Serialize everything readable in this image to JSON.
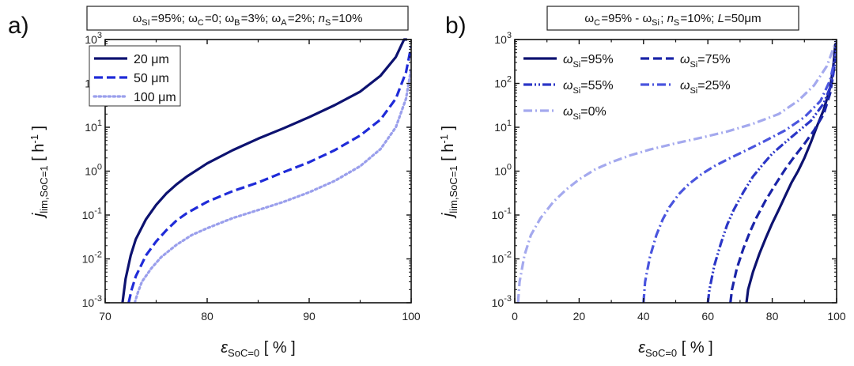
{
  "chart_data": [
    {
      "panel": "a)",
      "type": "line",
      "annotation": {
        "parts": [
          {
            "t": "ω",
            "s": "SI"
          },
          {
            "t": "=95%; ω",
            "s": "C"
          },
          {
            "t": "=0;  ω",
            "s": "B"
          },
          {
            "t": "=3%; ω",
            "s": "A"
          },
          {
            "t": "=2%; "
          },
          {
            "t": "n",
            "i": true,
            "s": "S"
          },
          {
            "t": "=10%"
          }
        ]
      },
      "xlabel": {
        "sym": "ε",
        "sub": "SoC=0",
        "unit": " [ % ]"
      },
      "ylabel": {
        "sym": "j",
        "sub": "lim,SoC=1",
        "unit": " [ h",
        "sup": "-1",
        "end": " ]"
      },
      "xlim": [
        70,
        100
      ],
      "ylim": [
        0.001,
        1000
      ],
      "yscale": "log",
      "xticks": [
        70,
        80,
        90,
        100
      ],
      "yticks": [
        {
          "v": 0.001,
          "m": "10",
          "e": "-3"
        },
        {
          "v": 0.01,
          "m": "10",
          "e": "-2"
        },
        {
          "v": 0.1,
          "m": "10",
          "e": "-1"
        },
        {
          "v": 1,
          "m": "10",
          "e": "0"
        },
        {
          "v": 10,
          "m": "10",
          "e": "1"
        },
        {
          "v": 100,
          "m": "10",
          "e": "2"
        },
        {
          "v": 1000,
          "m": "10",
          "e": "3"
        }
      ],
      "legend_position": "top-left",
      "legend": [
        {
          "label": "20 μm",
          "series": 0
        },
        {
          "label": "50 μm",
          "series": 1
        },
        {
          "label": "100 μm",
          "series": 2
        }
      ],
      "series": [
        {
          "name": "20 μm",
          "color": "#0d1270",
          "dash": "solid",
          "x": [
            71.7,
            72.0,
            72.5,
            73.0,
            74.0,
            75.0,
            76.0,
            77.0,
            78.0,
            80.0,
            82.5,
            85.0,
            87.5,
            90.0,
            92.5,
            95.0,
            97.0,
            98.5,
            99.3,
            99.6
          ],
          "y": [
            0.001,
            0.0035,
            0.012,
            0.028,
            0.08,
            0.17,
            0.31,
            0.5,
            0.75,
            1.5,
            3.0,
            5.5,
            9.5,
            17,
            32,
            65,
            150,
            400,
            1000,
            1000
          ]
        },
        {
          "name": "50 μm",
          "color": "#1f2bd8",
          "dash": "dash",
          "x": [
            72.3,
            72.6,
            73.0,
            74.0,
            75.0,
            76.0,
            77.0,
            78.0,
            80.0,
            82.5,
            85.0,
            87.5,
            90.0,
            92.5,
            95.0,
            97.0,
            98.5,
            99.5,
            100.0
          ],
          "y": [
            0.001,
            0.002,
            0.004,
            0.012,
            0.025,
            0.045,
            0.075,
            0.11,
            0.2,
            0.35,
            0.55,
            0.95,
            1.6,
            3.0,
            6.5,
            15,
            45,
            180,
            700
          ]
        },
        {
          "name": "100 μm",
          "color": "#9a9fec",
          "dash": "dot",
          "x": [
            72.9,
            73.2,
            73.6,
            74.5,
            75.5,
            77.0,
            78.5,
            80.0,
            82.5,
            85.0,
            87.5,
            90.0,
            92.5,
            95.0,
            97.0,
            98.5,
            99.5,
            100.0
          ],
          "y": [
            0.001,
            0.0017,
            0.003,
            0.006,
            0.011,
            0.021,
            0.035,
            0.05,
            0.085,
            0.13,
            0.2,
            0.33,
            0.6,
            1.3,
            3.2,
            10,
            45,
            220
          ]
        }
      ]
    },
    {
      "panel": "b)",
      "type": "line",
      "annotation": {
        "parts": [
          {
            "t": "ω",
            "s": "C"
          },
          {
            "t": "=95% - ω",
            "s": "Si"
          },
          {
            "t": "; "
          },
          {
            "t": "n",
            "i": true,
            "s": "S"
          },
          {
            "t": "=10%; "
          },
          {
            "t": "L",
            "i": true
          },
          {
            "t": "=50μm"
          }
        ]
      },
      "xlabel": {
        "sym": "ε",
        "sub": "SoC=0",
        "unit": " [ % ]"
      },
      "ylabel": {
        "sym": "j",
        "sub": "lim,SoC=1",
        "unit": " [ h",
        "sup": "-1",
        "end": " ]"
      },
      "xlim": [
        0,
        100
      ],
      "ylim": [
        0.001,
        1000
      ],
      "yscale": "log",
      "xticks": [
        0,
        20,
        40,
        60,
        80,
        100
      ],
      "yticks": [
        {
          "v": 0.001,
          "m": "10",
          "e": "-3"
        },
        {
          "v": 0.01,
          "m": "10",
          "e": "-2"
        },
        {
          "v": 0.1,
          "m": "10",
          "e": "-1"
        },
        {
          "v": 1,
          "m": "10",
          "e": "0"
        },
        {
          "v": 10,
          "m": "10",
          "e": "1"
        },
        {
          "v": 100,
          "m": "10",
          "e": "2"
        },
        {
          "v": 1000,
          "m": "10",
          "e": "3"
        }
      ],
      "legend_position": "top-left",
      "legend": [
        {
          "label": "ω",
          "sub": "Si",
          "tail": "=95%",
          "series": 0
        },
        {
          "label": "ω",
          "sub": "Si",
          "tail": "=75%",
          "series": 1
        },
        {
          "label": "ω",
          "sub": "Si",
          "tail": "=55%",
          "series": 2
        },
        {
          "label": "ω",
          "sub": "Si",
          "tail": "=25%",
          "series": 3
        },
        {
          "label": "ω",
          "sub": "Si",
          "tail": "=0%",
          "series": 4
        }
      ],
      "series": [
        {
          "name": "ωSi=95%",
          "color": "#0d1270",
          "dash": "solid",
          "x": [
            72.0,
            72.5,
            74.0,
            76.0,
            78.0,
            80.0,
            82.0,
            84.0,
            86.0,
            88.0,
            90.0,
            92.0,
            94.0,
            96.0,
            98.0,
            99.0,
            99.6
          ],
          "y": [
            0.001,
            0.002,
            0.005,
            0.013,
            0.03,
            0.065,
            0.13,
            0.27,
            0.55,
            1.0,
            2.0,
            4.5,
            11,
            25,
            80,
            250,
            800
          ]
        },
        {
          "name": "ωSi=75%",
          "color": "#1a24a8",
          "dash": "dash",
          "x": [
            67.0,
            67.5,
            69.0,
            71.0,
            73.0,
            75.0,
            78.0,
            81.0,
            84.0,
            87.0,
            90.0,
            93.0,
            96.0,
            98.0,
            99.5,
            100.0
          ],
          "y": [
            0.001,
            0.002,
            0.006,
            0.017,
            0.04,
            0.085,
            0.22,
            0.5,
            1.1,
            2.2,
            4.2,
            8.5,
            20,
            60,
            300,
            1000
          ]
        },
        {
          "name": "ωSi=55%",
          "color": "#2b36c7",
          "dash": "dashdotdot",
          "x": [
            60.0,
            60.5,
            62.0,
            64.0,
            66.0,
            68.0,
            71.0,
            74.0,
            77.0,
            80.0,
            84.0,
            88.0,
            92.0,
            96.0,
            98.5,
            100.0
          ],
          "y": [
            0.001,
            0.002,
            0.007,
            0.022,
            0.06,
            0.13,
            0.33,
            0.75,
            1.4,
            2.5,
            4.5,
            8.0,
            14,
            35,
            100,
            500
          ]
        },
        {
          "name": "ωSi=25%",
          "color": "#4a55de",
          "dash": "dashdot",
          "x": [
            40.0,
            40.5,
            42.0,
            44.0,
            46.0,
            48.0,
            51.0,
            54.0,
            58.0,
            62.0,
            67.0,
            72.0,
            78.0,
            84.0,
            90.0,
            95.0,
            98.0,
            100.0
          ],
          "y": [
            0.001,
            0.003,
            0.011,
            0.035,
            0.08,
            0.15,
            0.3,
            0.5,
            0.85,
            1.3,
            2.0,
            3.0,
            5.0,
            8.5,
            17,
            40,
            120,
            550
          ]
        },
        {
          "name": "ωSi=0%",
          "color": "#a4a9ee",
          "dash": "dashdot",
          "x": [
            1.0,
            1.5,
            3.0,
            5.0,
            8.0,
            12.0,
            16.0,
            20.0,
            25.0,
            30.0,
            36.0,
            42.0,
            50.0,
            58.0,
            66.0,
            74.0,
            82.0,
            88.0,
            93.0,
            97.0,
            100.0
          ],
          "y": [
            0.001,
            0.003,
            0.012,
            0.035,
            0.085,
            0.2,
            0.38,
            0.65,
            1.1,
            1.6,
            2.3,
            3.1,
            4.3,
            5.8,
            8.0,
            12,
            20,
            40,
            90,
            250,
            1000
          ]
        }
      ]
    }
  ]
}
